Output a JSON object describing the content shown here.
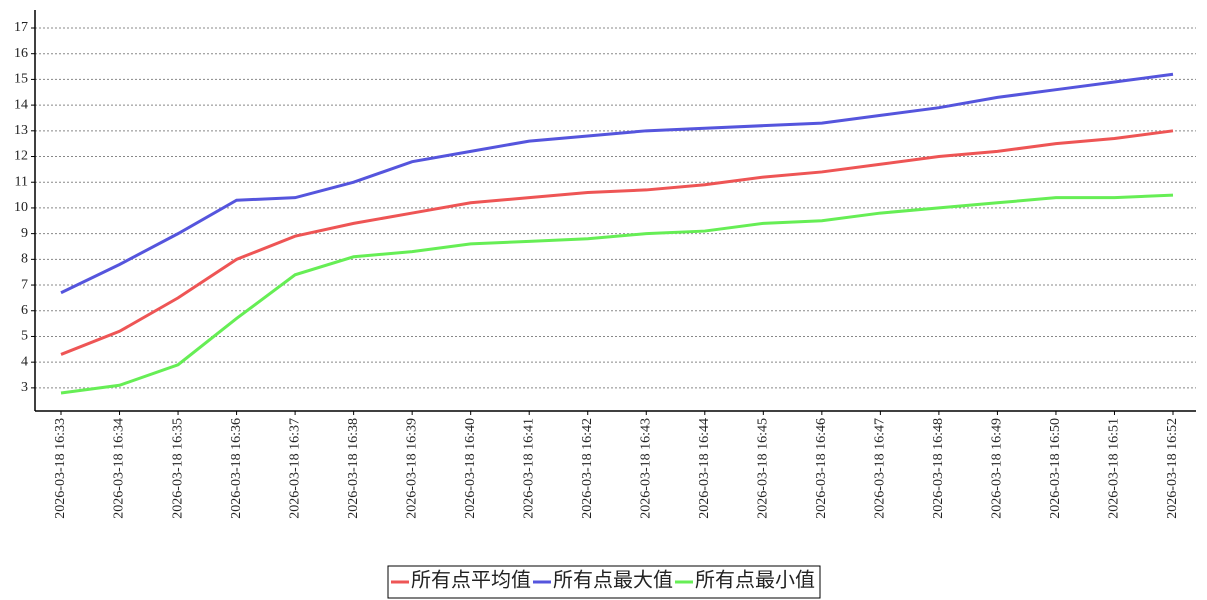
{
  "chart_data": {
    "type": "line",
    "categories": [
      "2026-03-18 16:33",
      "2026-03-18 16:34",
      "2026-03-18 16:35",
      "2026-03-18 16:36",
      "2026-03-18 16:37",
      "2026-03-18 16:38",
      "2026-03-18 16:39",
      "2026-03-18 16:40",
      "2026-03-18 16:41",
      "2026-03-18 16:42",
      "2026-03-18 16:43",
      "2026-03-18 16:44",
      "2026-03-18 16:45",
      "2026-03-18 16:46",
      "2026-03-18 16:47",
      "2026-03-18 16:48",
      "2026-03-18 16:49",
      "2026-03-18 16:50",
      "2026-03-18 16:51",
      "2026-03-18 16:52"
    ],
    "series": [
      {
        "name": "所有点平均值",
        "color": "#ee5555",
        "values": [
          4.3,
          5.2,
          6.5,
          8.0,
          8.9,
          9.4,
          9.8,
          10.2,
          10.4,
          10.6,
          10.7,
          10.9,
          11.2,
          11.4,
          11.7,
          12.0,
          12.2,
          12.5,
          12.7,
          13.0
        ]
      },
      {
        "name": "所有点最大值",
        "color": "#5555dd",
        "values": [
          6.7,
          7.8,
          9.0,
          10.3,
          10.4,
          11.0,
          11.8,
          12.2,
          12.6,
          12.8,
          13.0,
          13.1,
          13.2,
          13.3,
          13.6,
          13.9,
          14.3,
          14.6,
          14.9,
          15.2
        ]
      },
      {
        "name": "所有点最小值",
        "color": "#66ee55",
        "values": [
          2.8,
          3.1,
          3.9,
          5.7,
          7.4,
          8.1,
          8.3,
          8.6,
          8.7,
          8.8,
          9.0,
          9.1,
          9.4,
          9.5,
          9.8,
          10.0,
          10.2,
          10.4,
          10.4,
          10.5
        ]
      }
    ],
    "ylim": [
      2.1,
      17.7
    ],
    "yticks": [
      3,
      4,
      5,
      6,
      7,
      8,
      9,
      10,
      11,
      12,
      13,
      14,
      15,
      16,
      17
    ],
    "grid": true,
    "legend": "bottom"
  }
}
